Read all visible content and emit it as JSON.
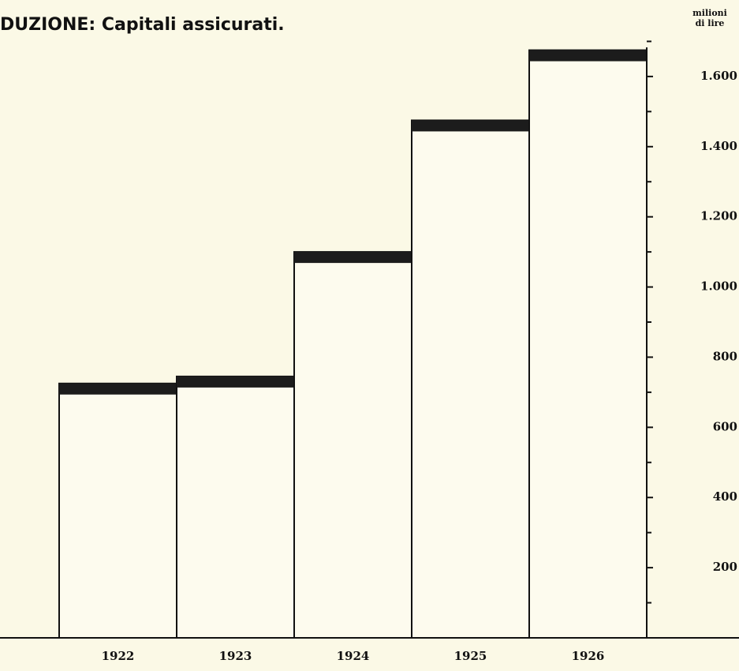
{
  "chart_data": {
    "type": "bar",
    "title": "DUZIONE: Capitali assicurati.",
    "unit_label": [
      "milioni",
      "di lire"
    ],
    "categories": [
      "1922",
      "1923",
      "1924",
      "1925",
      "1926"
    ],
    "values": [
      725,
      745,
      1100,
      1475,
      1675
    ],
    "color": "#fdfbee",
    "cap_color": "#1c1c1c",
    "ylim": [
      0,
      1800
    ],
    "yticks": [
      {
        "value": 200,
        "label": "200"
      },
      {
        "value": 400,
        "label": "400"
      },
      {
        "value": 600,
        "label": "600"
      },
      {
        "value": 800,
        "label": "800"
      },
      {
        "value": 1000,
        "label": "1.000"
      },
      {
        "value": 1200,
        "label": "1.200"
      },
      {
        "value": 1400,
        "label": "1.400"
      },
      {
        "value": 1600,
        "label": "1.600"
      }
    ],
    "minor_yticks": [
      100,
      300,
      500,
      700,
      900,
      1100,
      1300,
      1500,
      1700
    ],
    "grid": false
  }
}
